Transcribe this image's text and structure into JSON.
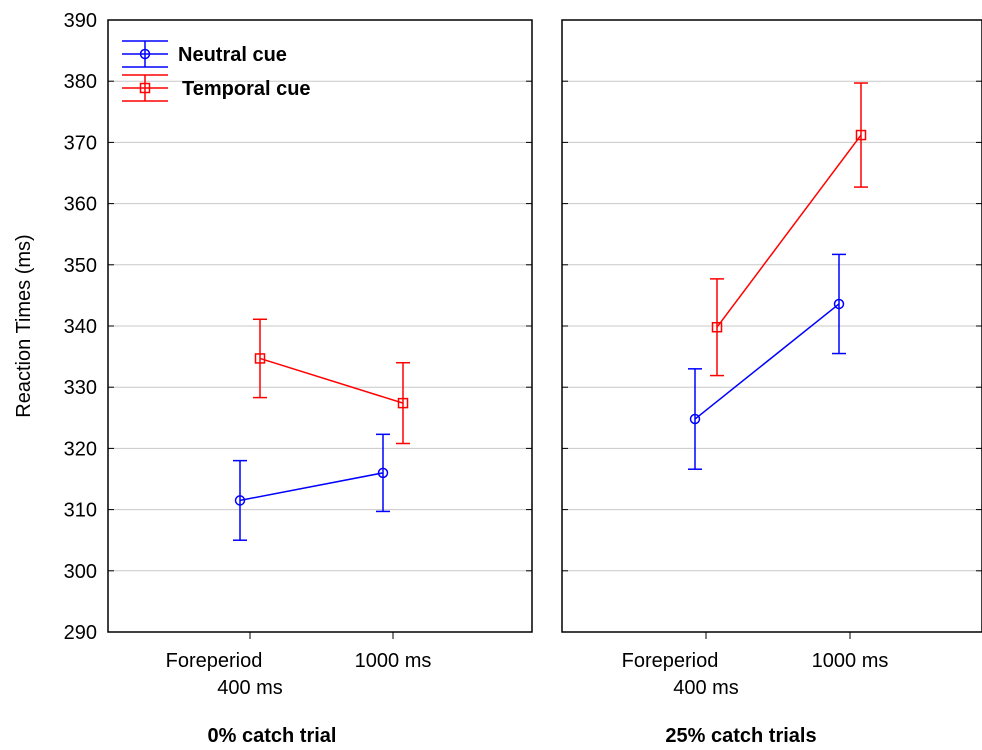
{
  "chart_data": {
    "type": "line",
    "ylabel": "Reaction Times (ms)",
    "ylim": [
      290,
      390
    ],
    "yticks": [
      290,
      300,
      310,
      320,
      330,
      340,
      350,
      360,
      370,
      380,
      390
    ],
    "grid": true,
    "legend_position": "top-left",
    "x_label_lines": [
      [
        "Foreperiod",
        "400 ms"
      ],
      [
        "1000 ms"
      ]
    ],
    "panels": [
      {
        "title": "0% catch trial",
        "series": [
          {
            "name": "Neutral cue",
            "color": "#0000ff",
            "marker": "circle",
            "values": [
              311.5,
              316.0
            ],
            "errors": [
              6.5,
              6.3
            ]
          },
          {
            "name": "Temporal cue",
            "color": "#ff0000",
            "marker": "square",
            "values": [
              334.7,
              327.4
            ],
            "errors": [
              6.4,
              6.6
            ]
          }
        ]
      },
      {
        "title": "25% catch trials",
        "series": [
          {
            "name": "Neutral cue",
            "color": "#0000ff",
            "marker": "circle",
            "values": [
              324.8,
              343.6
            ],
            "errors": [
              8.2,
              8.1
            ]
          },
          {
            "name": "Temporal cue",
            "color": "#ff0000",
            "marker": "square",
            "values": [
              339.8,
              371.2
            ],
            "errors": [
              7.9,
              8.5
            ]
          }
        ]
      }
    ],
    "legend": [
      {
        "name": "Neutral cue",
        "color": "#0000ff",
        "marker": "circle"
      },
      {
        "name": "Temporal cue",
        "color": "#ff0000",
        "marker": "square"
      }
    ]
  }
}
